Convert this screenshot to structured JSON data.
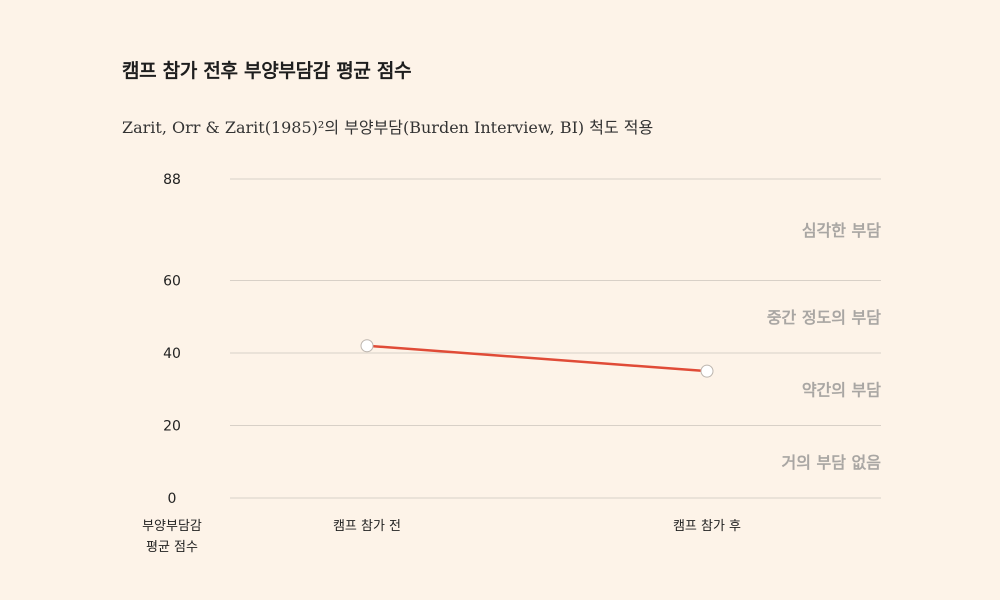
{
  "title": "캠프 참가 전후 부양부담감 평균 점수",
  "subtitle": "Zarit, Orr & Zarit(1985)²의 부양부담(Burden Interview, BI) 척도 적용",
  "chart_data": {
    "type": "line",
    "categories": [
      "캠프 참가 전",
      "캠프 참가 후"
    ],
    "values": [
      42,
      35
    ],
    "ylim": [
      0,
      88
    ],
    "yticks": [
      0,
      20,
      40,
      60,
      88
    ],
    "ylabel": [
      "부양부담감",
      "평균 점수"
    ],
    "bands": [
      {
        "label": "심각한 부담",
        "range": [
          60,
          88
        ]
      },
      {
        "label": "중간 정도의 부담",
        "range": [
          40,
          60
        ]
      },
      {
        "label": "약간의 부담",
        "range": [
          20,
          40
        ]
      },
      {
        "label": "거의 부담 없음",
        "range": [
          0,
          20
        ]
      }
    ],
    "grid": true,
    "colors": {
      "line": "#e04b37",
      "grid": "#d8d0c7",
      "band_label": "#a9a6a3"
    }
  }
}
